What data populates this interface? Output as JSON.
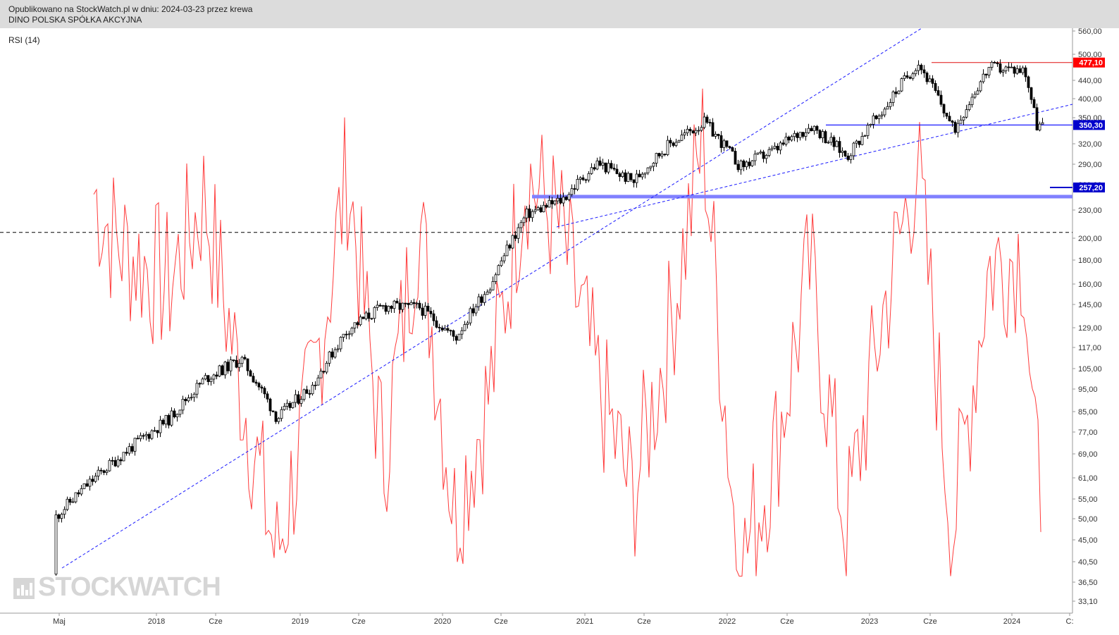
{
  "header": {
    "line1": "Opublikowano na StockWatch.pl w dniu: 2024-03-23 przez krewa",
    "line2": "DINO POLSKA SPÓŁKA AKCYJNA"
  },
  "indicator_label": "RSI (14)",
  "watermark": "STOCKWATCH",
  "watermark_icon": "bar-chart-icon",
  "colors": {
    "candle": "#000000",
    "rsi": "#ff3b3b",
    "trendline": "#1a1aff",
    "support_band": "#8080ff",
    "resistance": "#e01010",
    "flag_red": "#ff0000",
    "flag_blue": "#0000cc",
    "header_bg": "#dcdcdc"
  },
  "chart_data": {
    "type": "line",
    "y_scale": "log",
    "y_ticks": [
      "560,00",
      "500,00",
      "440,00",
      "400,00",
      "350,00",
      "320,00",
      "290,00",
      "260,00",
      "230,00",
      "200,00",
      "180,00",
      "160,00",
      "145,00",
      "129,00",
      "117,00",
      "105,00",
      "95,00",
      "85,00",
      "77,00",
      "69,00",
      "61,00",
      "55,00",
      "50,00",
      "45,00",
      "40,50",
      "36,50",
      "33,10"
    ],
    "x_ticks": [
      "Maj",
      "2018",
      "Cze",
      "2019",
      "Cze",
      "2020",
      "Cze",
      "2021",
      "Cze",
      "2022",
      "Cze",
      "2023",
      "Cze",
      "2024",
      "C:"
    ],
    "flags": [
      {
        "label": "477,10",
        "color": "red"
      },
      {
        "label": "350,30",
        "color": "blue"
      },
      {
        "label": "257,20",
        "color": "blue"
      }
    ],
    "series": [
      {
        "kind": "price-weekly-candles",
        "x": [
          "2017-05",
          "2017-08",
          "2017-11",
          "2018-02",
          "2018-05",
          "2018-08",
          "2018-11",
          "2019-02",
          "2019-05",
          "2019-08",
          "2019-11",
          "2020-02",
          "2020-05",
          "2020-08",
          "2020-11",
          "2021-02",
          "2021-05",
          "2021-08",
          "2021-11",
          "2022-02",
          "2022-05",
          "2022-08",
          "2022-11",
          "2023-02",
          "2023-05",
          "2023-08",
          "2023-11",
          "2024-02",
          "2024-03"
        ],
        "y": [
          38,
          50,
          67,
          82,
          100,
          110,
          82,
          97,
          128,
          143,
          142,
          122,
          160,
          225,
          242,
          290,
          265,
          318,
          355,
          285,
          310,
          350,
          300,
          375,
          477,
          340,
          465,
          460,
          350
        ]
      },
      {
        "kind": "rsi-14",
        "x": [
          "2017-05",
          "2017-08",
          "2017-11",
          "2018-02",
          "2018-05",
          "2018-08",
          "2018-11",
          "2019-02",
          "2019-05",
          "2019-08",
          "2019-11",
          "2020-02",
          "2020-05",
          "2020-08",
          "2020-11",
          "2021-02",
          "2021-05",
          "2021-08",
          "2021-11",
          "2022-02",
          "2022-05",
          "2022-08",
          "2022-11",
          "2023-02",
          "2023-05",
          "2023-08",
          "2023-11",
          "2024-02",
          "2024-03"
        ],
        "y": [
          82,
          85,
          69,
          64,
          74,
          53,
          33,
          52,
          77,
          44,
          72,
          38,
          52,
          77,
          70,
          53,
          40,
          58,
          81,
          31,
          45,
          66,
          36,
          60,
          78,
          36,
          66,
          68,
          42
        ]
      }
    ],
    "lines": [
      {
        "name": "dashed-horizontal",
        "style": "dashed",
        "y": 206
      },
      {
        "name": "resistance",
        "style": "solid",
        "y": 477.1
      },
      {
        "name": "support",
        "style": "solid",
        "y": 350.3
      },
      {
        "name": "support-band",
        "style": "band",
        "y": [
          244,
          248
        ]
      }
    ]
  }
}
